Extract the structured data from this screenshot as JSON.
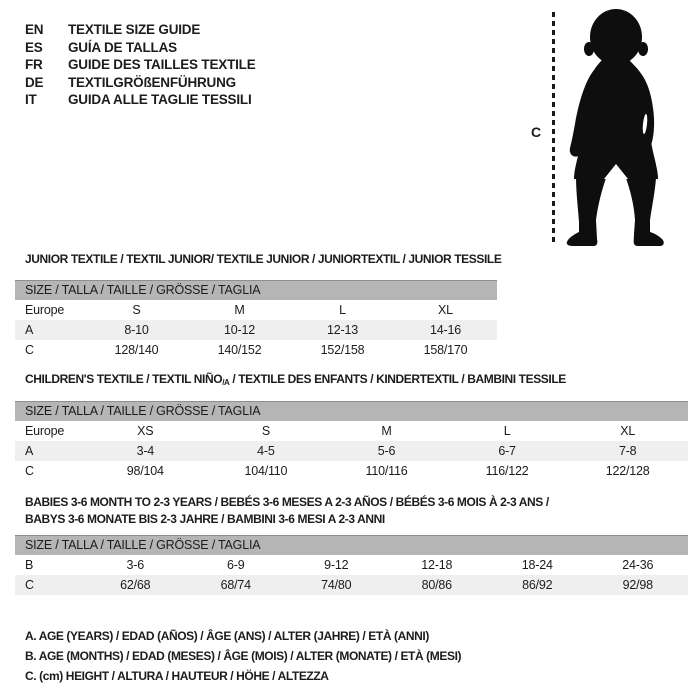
{
  "colors": {
    "text": "#1c1c1c",
    "table_header_bg": "#b5b5b5",
    "row_stripe_bg": "#efefef",
    "background": "#ffffff"
  },
  "languages": [
    {
      "code": "EN",
      "label": "TEXTILE SIZE GUIDE"
    },
    {
      "code": "ES",
      "label": "GUÍA DE TALLAS"
    },
    {
      "code": "FR",
      "label": "GUIDE DES TAILLES TEXTILE"
    },
    {
      "code": "DE",
      "label": "TEXTILGRÖßENFÜHRUNG"
    },
    {
      "code": "IT",
      "label": "GUIDA ALLE TAGLIE TESSILI"
    }
  ],
  "figure": {
    "measure_label": "C",
    "silhouette": "toddler-standing-silhouette"
  },
  "sections": [
    {
      "title_lines": [
        [
          {
            "t": "JUNIOR TEXTILE / TEXTIL JUNIOR/ TEXTILE JUNIOR / JUNIORTEXTIL / JUNIOR TESSILE"
          }
        ]
      ],
      "table_header": "SIZE / TALLA / TAILLE / GRÖSSE / TAGLIA",
      "rows": [
        {
          "label": "Europe",
          "cells": [
            "S",
            "M",
            "L",
            "XL"
          ],
          "striped": false
        },
        {
          "label": "A",
          "cells": [
            "8-10",
            "10-12",
            "12-13",
            "14-16"
          ],
          "striped": true
        },
        {
          "label": "C",
          "cells": [
            "128/140",
            "140/152",
            "152/158",
            "158/170"
          ],
          "striped": false
        }
      ]
    },
    {
      "title_lines": [
        [
          {
            "t": "CHILDREN'S TEXTILE / TEXTIL NIÑO"
          },
          {
            "t": "/A",
            "sub": true
          },
          {
            "t": " / TEXTILE DES ENFANTS / KINDERTEXTIL / BAMBINI TESSILE"
          }
        ]
      ],
      "table_header": "SIZE / TALLA / TAILLE / GRÖSSE / TAGLIA",
      "rows": [
        {
          "label": "Europe",
          "cells": [
            "XS",
            "S",
            "M",
            "L",
            "XL"
          ],
          "striped": false
        },
        {
          "label": "A",
          "cells": [
            "3-4",
            "4-5",
            "5-6",
            "6-7",
            "7-8"
          ],
          "striped": true
        },
        {
          "label": "C",
          "cells": [
            "98/104",
            "104/110",
            "110/116",
            "116/122",
            "122/128"
          ],
          "striped": false
        }
      ]
    },
    {
      "title_lines": [
        [
          {
            "t": "BABIES 3-6 MONTH TO 2-3 YEARS / BEBÉS 3-6 MESES A 2-3 AÑOS / BÉBÉS 3-6 MOIS À 2-3 ANS /"
          }
        ],
        [
          {
            "t": "BABYS 3-6 MONATE BIS 2-3 JAHRE / BAMBINI 3-6 MESI A 2-3 ANNI"
          }
        ]
      ],
      "table_header": "SIZE / TALLA / TAILLE / GRÖSSE / TAGLIA",
      "rows": [
        {
          "label": "B",
          "cells": [
            "3-6",
            "6-9",
            "9-12",
            "12-18",
            "18-24",
            "24-36"
          ],
          "striped": false
        },
        {
          "label": "C",
          "cells": [
            "62/68",
            "68/74",
            "74/80",
            "80/86",
            "86/92",
            "92/98"
          ],
          "striped": true
        }
      ]
    }
  ],
  "footnotes": [
    "A. AGE (YEARS) / EDAD (AÑOS) / ÂGE (ANS) / ALTER (JAHRE) / ETÀ (ANNI)",
    "B. AGE (MONTHS) / EDAD (MESES) / ÂGE (MOIS) / ALTER (MONATE) / ETÀ (MESI)",
    "C. (cm) HEIGHT / ALTURA / HAUTEUR / HÖHE / ALTEZZA"
  ]
}
